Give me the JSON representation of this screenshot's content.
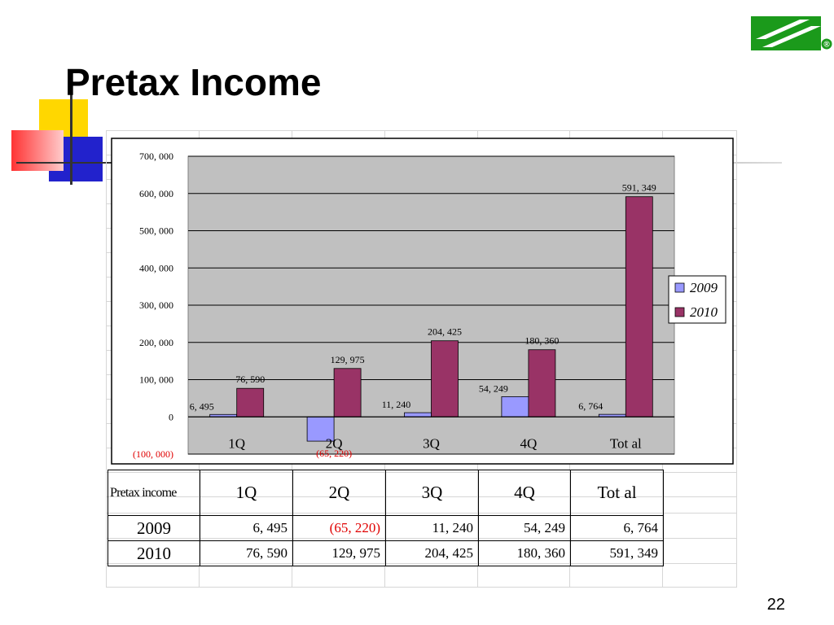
{
  "slide": {
    "title": "Pretax Income",
    "page_number": "22",
    "logo_registered_mark": "®",
    "colors": {
      "logo_green": "#1b9a1b",
      "series_2009": "#9999ff",
      "series_2010": "#993366",
      "plot_bg": "#c0c0c0",
      "negative_text": "#e00000"
    }
  },
  "chart_data": {
    "type": "bar",
    "categories": [
      "1Q",
      "2Q",
      "3Q",
      "4Q",
      "Tot al"
    ],
    "series": [
      {
        "name": "2009",
        "values": [
          6495,
          -65220,
          11240,
          54249,
          6764
        ],
        "labels": [
          "6, 495",
          "(65, 220)",
          "11, 240",
          "54, 249",
          "6, 764"
        ]
      },
      {
        "name": "2010",
        "values": [
          76590,
          129975,
          204425,
          180360,
          591349
        ],
        "labels": [
          "76, 590",
          "129, 975",
          "204, 425",
          "180, 360",
          "591, 349"
        ]
      }
    ],
    "ylim": [
      -100000,
      700000
    ],
    "yticks": [
      -100000,
      0,
      100000,
      200000,
      300000,
      400000,
      500000,
      600000,
      700000
    ],
    "ytick_labels": [
      "(100, 000)",
      "0",
      "100, 000",
      "200, 000",
      "300, 000",
      "400, 000",
      "500, 000",
      "600, 000",
      "700, 000"
    ],
    "grid": true,
    "legend_position": "right"
  },
  "table": {
    "corner": "Pretax income",
    "headers": [
      "1Q",
      "2Q",
      "3Q",
      "4Q",
      "Tot al"
    ],
    "rows": [
      {
        "label": "2009",
        "cells": [
          "6, 495",
          "(65, 220)",
          "11, 240",
          "54, 249",
          "6, 764"
        ]
      },
      {
        "label": "2010",
        "cells": [
          "76, 590",
          "129, 975",
          "204, 425",
          "180, 360",
          "591, 349"
        ]
      }
    ]
  }
}
